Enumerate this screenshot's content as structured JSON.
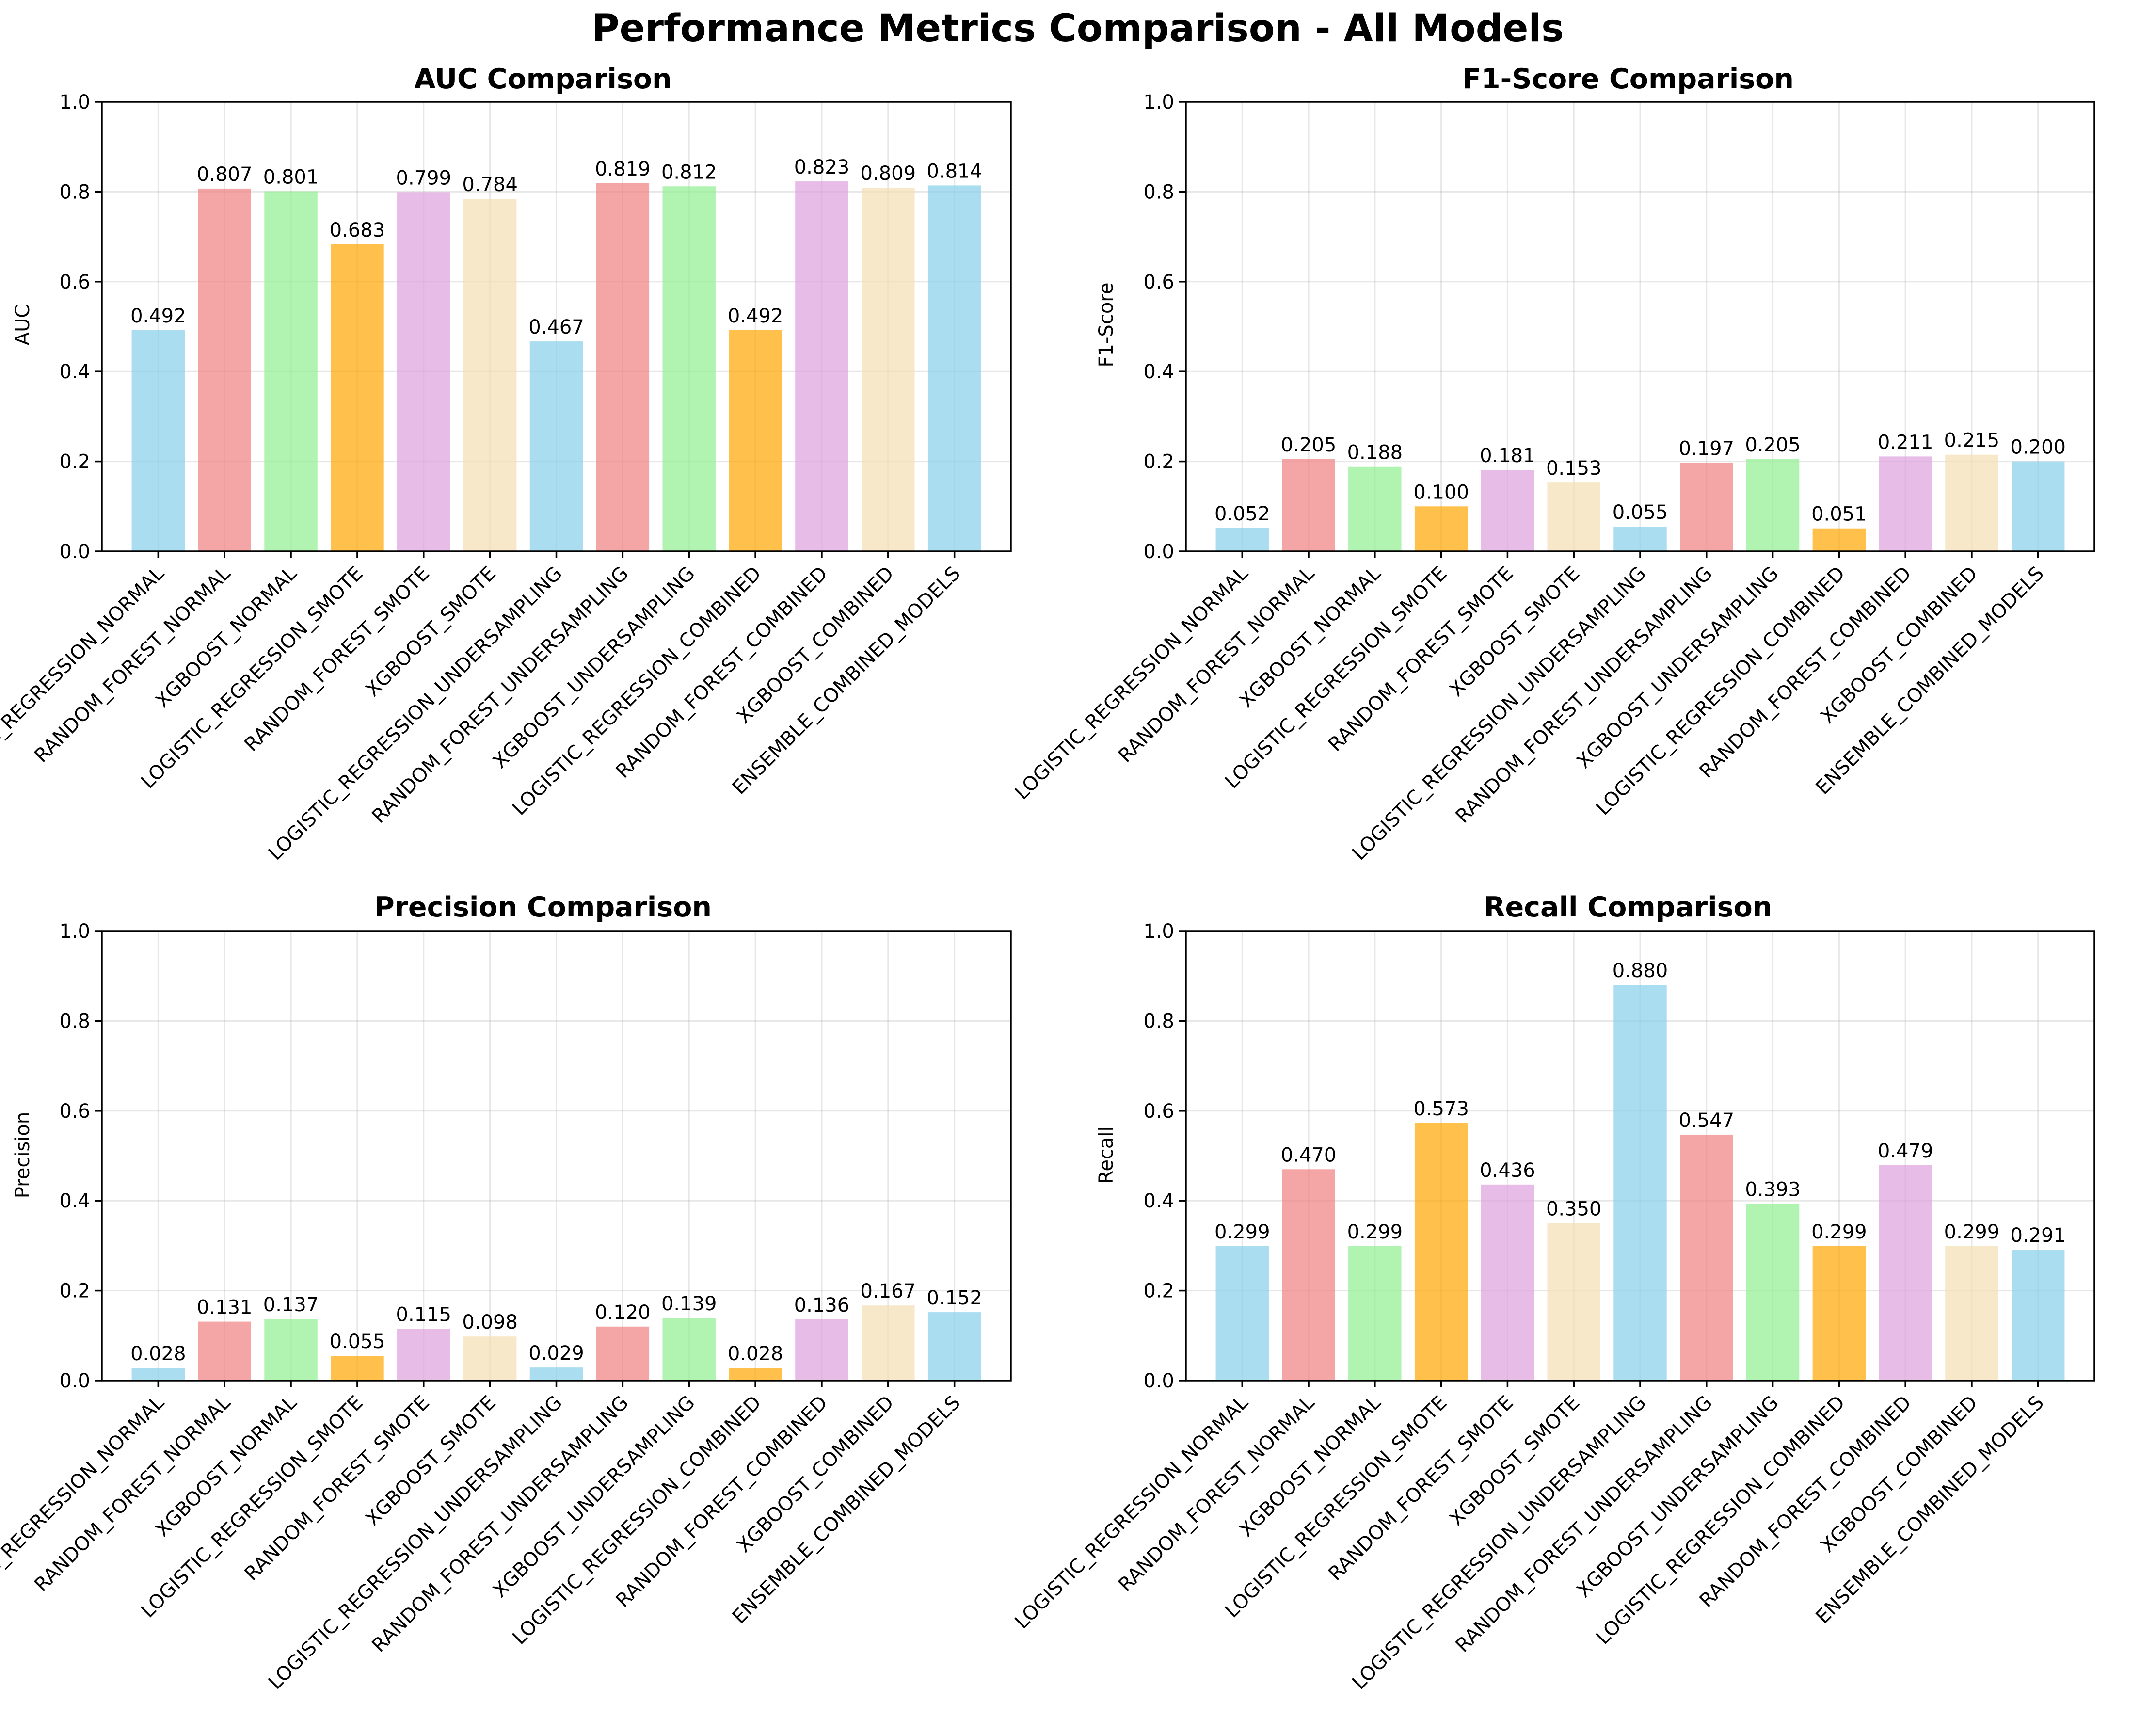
{
  "figure": {
    "title": "Performance Metrics Comparison - All Models"
  },
  "colors": [
    "#87ceeb",
    "#f08080",
    "#90ee90",
    "#ffa500",
    "#dda0dd",
    "#f5deb3"
  ],
  "chart_data": [
    {
      "type": "bar",
      "title": "AUC Comparison",
      "xlabel": "",
      "ylabel": "AUC",
      "ylim": [
        0,
        1
      ],
      "yticks": [
        "0.0",
        "0.2",
        "0.4",
        "0.6",
        "0.8",
        "1.0"
      ],
      "grid": true,
      "categories": [
        "LOGISTIC_REGRESSION_NORMAL",
        "RANDOM_FOREST_NORMAL",
        "XGBOOST_NORMAL",
        "LOGISTIC_REGRESSION_SMOTE",
        "RANDOM_FOREST_SMOTE",
        "XGBOOST_SMOTE",
        "LOGISTIC_REGRESSION_UNDERSAMPLING",
        "RANDOM_FOREST_UNDERSAMPLING",
        "XGBOOST_UNDERSAMPLING",
        "LOGISTIC_REGRESSION_COMBINED",
        "RANDOM_FOREST_COMBINED",
        "XGBOOST_COMBINED",
        "ENSEMBLE_COMBINED_MODELS"
      ],
      "values": [
        0.492,
        0.807,
        0.801,
        0.683,
        0.799,
        0.784,
        0.467,
        0.819,
        0.812,
        0.492,
        0.823,
        0.809,
        0.814
      ],
      "data_labels": [
        "0.492",
        "0.807",
        "0.801",
        "0.683",
        "0.799",
        "0.784",
        "0.467",
        "0.819",
        "0.812",
        "0.492",
        "0.823",
        "0.809",
        "0.814"
      ]
    },
    {
      "type": "bar",
      "title": "F1-Score Comparison",
      "xlabel": "",
      "ylabel": "F1-Score",
      "ylim": [
        0,
        1
      ],
      "yticks": [
        "0.0",
        "0.2",
        "0.4",
        "0.6",
        "0.8",
        "1.0"
      ],
      "grid": true,
      "categories": [
        "LOGISTIC_REGRESSION_NORMAL",
        "RANDOM_FOREST_NORMAL",
        "XGBOOST_NORMAL",
        "LOGISTIC_REGRESSION_SMOTE",
        "RANDOM_FOREST_SMOTE",
        "XGBOOST_SMOTE",
        "LOGISTIC_REGRESSION_UNDERSAMPLING",
        "RANDOM_FOREST_UNDERSAMPLING",
        "XGBOOST_UNDERSAMPLING",
        "LOGISTIC_REGRESSION_COMBINED",
        "RANDOM_FOREST_COMBINED",
        "XGBOOST_COMBINED",
        "ENSEMBLE_COMBINED_MODELS"
      ],
      "values": [
        0.052,
        0.205,
        0.188,
        0.1,
        0.181,
        0.153,
        0.055,
        0.197,
        0.205,
        0.051,
        0.211,
        0.215,
        0.2
      ],
      "data_labels": [
        "0.052",
        "0.205",
        "0.188",
        "0.100",
        "0.181",
        "0.153",
        "0.055",
        "0.197",
        "0.205",
        "0.051",
        "0.211",
        "0.215",
        "0.200"
      ]
    },
    {
      "type": "bar",
      "title": "Precision Comparison",
      "xlabel": "",
      "ylabel": "Precision",
      "ylim": [
        0,
        1
      ],
      "yticks": [
        "0.0",
        "0.2",
        "0.4",
        "0.6",
        "0.8",
        "1.0"
      ],
      "grid": true,
      "categories": [
        "LOGISTIC_REGRESSION_NORMAL",
        "RANDOM_FOREST_NORMAL",
        "XGBOOST_NORMAL",
        "LOGISTIC_REGRESSION_SMOTE",
        "RANDOM_FOREST_SMOTE",
        "XGBOOST_SMOTE",
        "LOGISTIC_REGRESSION_UNDERSAMPLING",
        "RANDOM_FOREST_UNDERSAMPLING",
        "XGBOOST_UNDERSAMPLING",
        "LOGISTIC_REGRESSION_COMBINED",
        "RANDOM_FOREST_COMBINED",
        "XGBOOST_COMBINED",
        "ENSEMBLE_COMBINED_MODELS"
      ],
      "values": [
        0.028,
        0.131,
        0.137,
        0.055,
        0.115,
        0.098,
        0.029,
        0.12,
        0.139,
        0.028,
        0.136,
        0.167,
        0.152
      ],
      "data_labels": [
        "0.028",
        "0.131",
        "0.137",
        "0.055",
        "0.115",
        "0.098",
        "0.029",
        "0.120",
        "0.139",
        "0.028",
        "0.136",
        "0.167",
        "0.152"
      ]
    },
    {
      "type": "bar",
      "title": "Recall Comparison",
      "xlabel": "",
      "ylabel": "Recall",
      "ylim": [
        0,
        1
      ],
      "yticks": [
        "0.0",
        "0.2",
        "0.4",
        "0.6",
        "0.8",
        "1.0"
      ],
      "grid": true,
      "categories": [
        "LOGISTIC_REGRESSION_NORMAL",
        "RANDOM_FOREST_NORMAL",
        "XGBOOST_NORMAL",
        "LOGISTIC_REGRESSION_SMOTE",
        "RANDOM_FOREST_SMOTE",
        "XGBOOST_SMOTE",
        "LOGISTIC_REGRESSION_UNDERSAMPLING",
        "RANDOM_FOREST_UNDERSAMPLING",
        "XGBOOST_UNDERSAMPLING",
        "LOGISTIC_REGRESSION_COMBINED",
        "RANDOM_FOREST_COMBINED",
        "XGBOOST_COMBINED",
        "ENSEMBLE_COMBINED_MODELS"
      ],
      "values": [
        0.299,
        0.47,
        0.299,
        0.573,
        0.436,
        0.35,
        0.88,
        0.547,
        0.393,
        0.299,
        0.479,
        0.299,
        0.291
      ],
      "data_labels": [
        "0.299",
        "0.470",
        "0.299",
        "0.573",
        "0.436",
        "0.350",
        "0.880",
        "0.547",
        "0.393",
        "0.299",
        "0.479",
        "0.299",
        "0.291"
      ]
    }
  ]
}
